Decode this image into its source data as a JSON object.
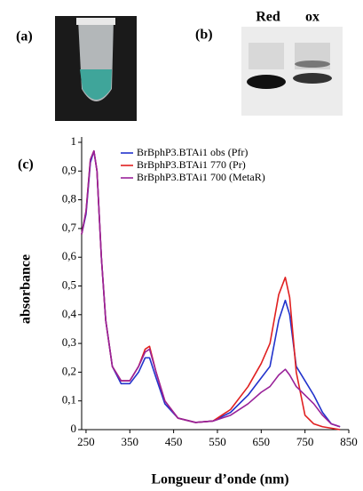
{
  "panels": {
    "a": "(a)",
    "b": "(b)",
    "c": "(c)"
  },
  "gel_lanes": [
    "Red",
    "ox"
  ],
  "chart_data": {
    "type": "line",
    "xlabel": "Longueur d’onde (nm)",
    "ylabel": "absorbance",
    "x": [
      240,
      250,
      260,
      268,
      275,
      285,
      295,
      310,
      330,
      350,
      370,
      385,
      395,
      410,
      430,
      460,
      500,
      540,
      580,
      620,
      650,
      670,
      690,
      705,
      715,
      730,
      750,
      770,
      790,
      810,
      830
    ],
    "series": [
      {
        "name": "BrBphP3.BTAi1 obs (Pfr)",
        "color": "#2233cc",
        "values": [
          0.68,
          0.75,
          0.93,
          0.97,
          0.9,
          0.6,
          0.38,
          0.22,
          0.16,
          0.16,
          0.2,
          0.25,
          0.25,
          0.18,
          0.09,
          0.04,
          0.025,
          0.03,
          0.06,
          0.12,
          0.18,
          0.22,
          0.38,
          0.45,
          0.4,
          0.22,
          0.17,
          0.12,
          0.06,
          0.02,
          0.01
        ]
      },
      {
        "name": "BrBphP3.BTAi1 770 (Pr)",
        "color": "#e02020",
        "values": [
          0.68,
          0.76,
          0.94,
          0.97,
          0.9,
          0.6,
          0.38,
          0.22,
          0.17,
          0.17,
          0.22,
          0.28,
          0.29,
          0.2,
          0.1,
          0.04,
          0.025,
          0.03,
          0.07,
          0.15,
          0.23,
          0.3,
          0.47,
          0.53,
          0.46,
          0.2,
          0.05,
          0.02,
          0.01,
          0.005,
          0
        ]
      },
      {
        "name": "BrBphP3.BTAi1 700 (MetaR)",
        "color": "#992299",
        "values": [
          0.68,
          0.76,
          0.94,
          0.97,
          0.9,
          0.6,
          0.38,
          0.22,
          0.17,
          0.17,
          0.22,
          0.27,
          0.28,
          0.2,
          0.1,
          0.04,
          0.025,
          0.03,
          0.05,
          0.09,
          0.13,
          0.15,
          0.19,
          0.21,
          0.19,
          0.15,
          0.12,
          0.09,
          0.05,
          0.02,
          0.01
        ]
      }
    ],
    "xlim": [
      240,
      850
    ],
    "xticks": [
      250,
      350,
      450,
      550,
      650,
      750,
      850
    ],
    "ylim": [
      0,
      1
    ],
    "yticks": [
      0,
      {
        "value": 0.1,
        "label": "0,1"
      },
      {
        "value": 0.2,
        "label": "0,2"
      },
      {
        "value": 0.3,
        "label": "0,3"
      },
      {
        "value": 0.4,
        "label": "0,4"
      },
      {
        "value": 0.5,
        "label": "0,5"
      },
      {
        "value": 0.6,
        "label": "0,6"
      },
      {
        "value": 0.7,
        "label": "0,7"
      },
      {
        "value": 0.8,
        "label": "0,8"
      },
      {
        "value": 0.9,
        "label": "0,9"
      },
      1
    ],
    "grid": false,
    "legend": "top-right"
  }
}
